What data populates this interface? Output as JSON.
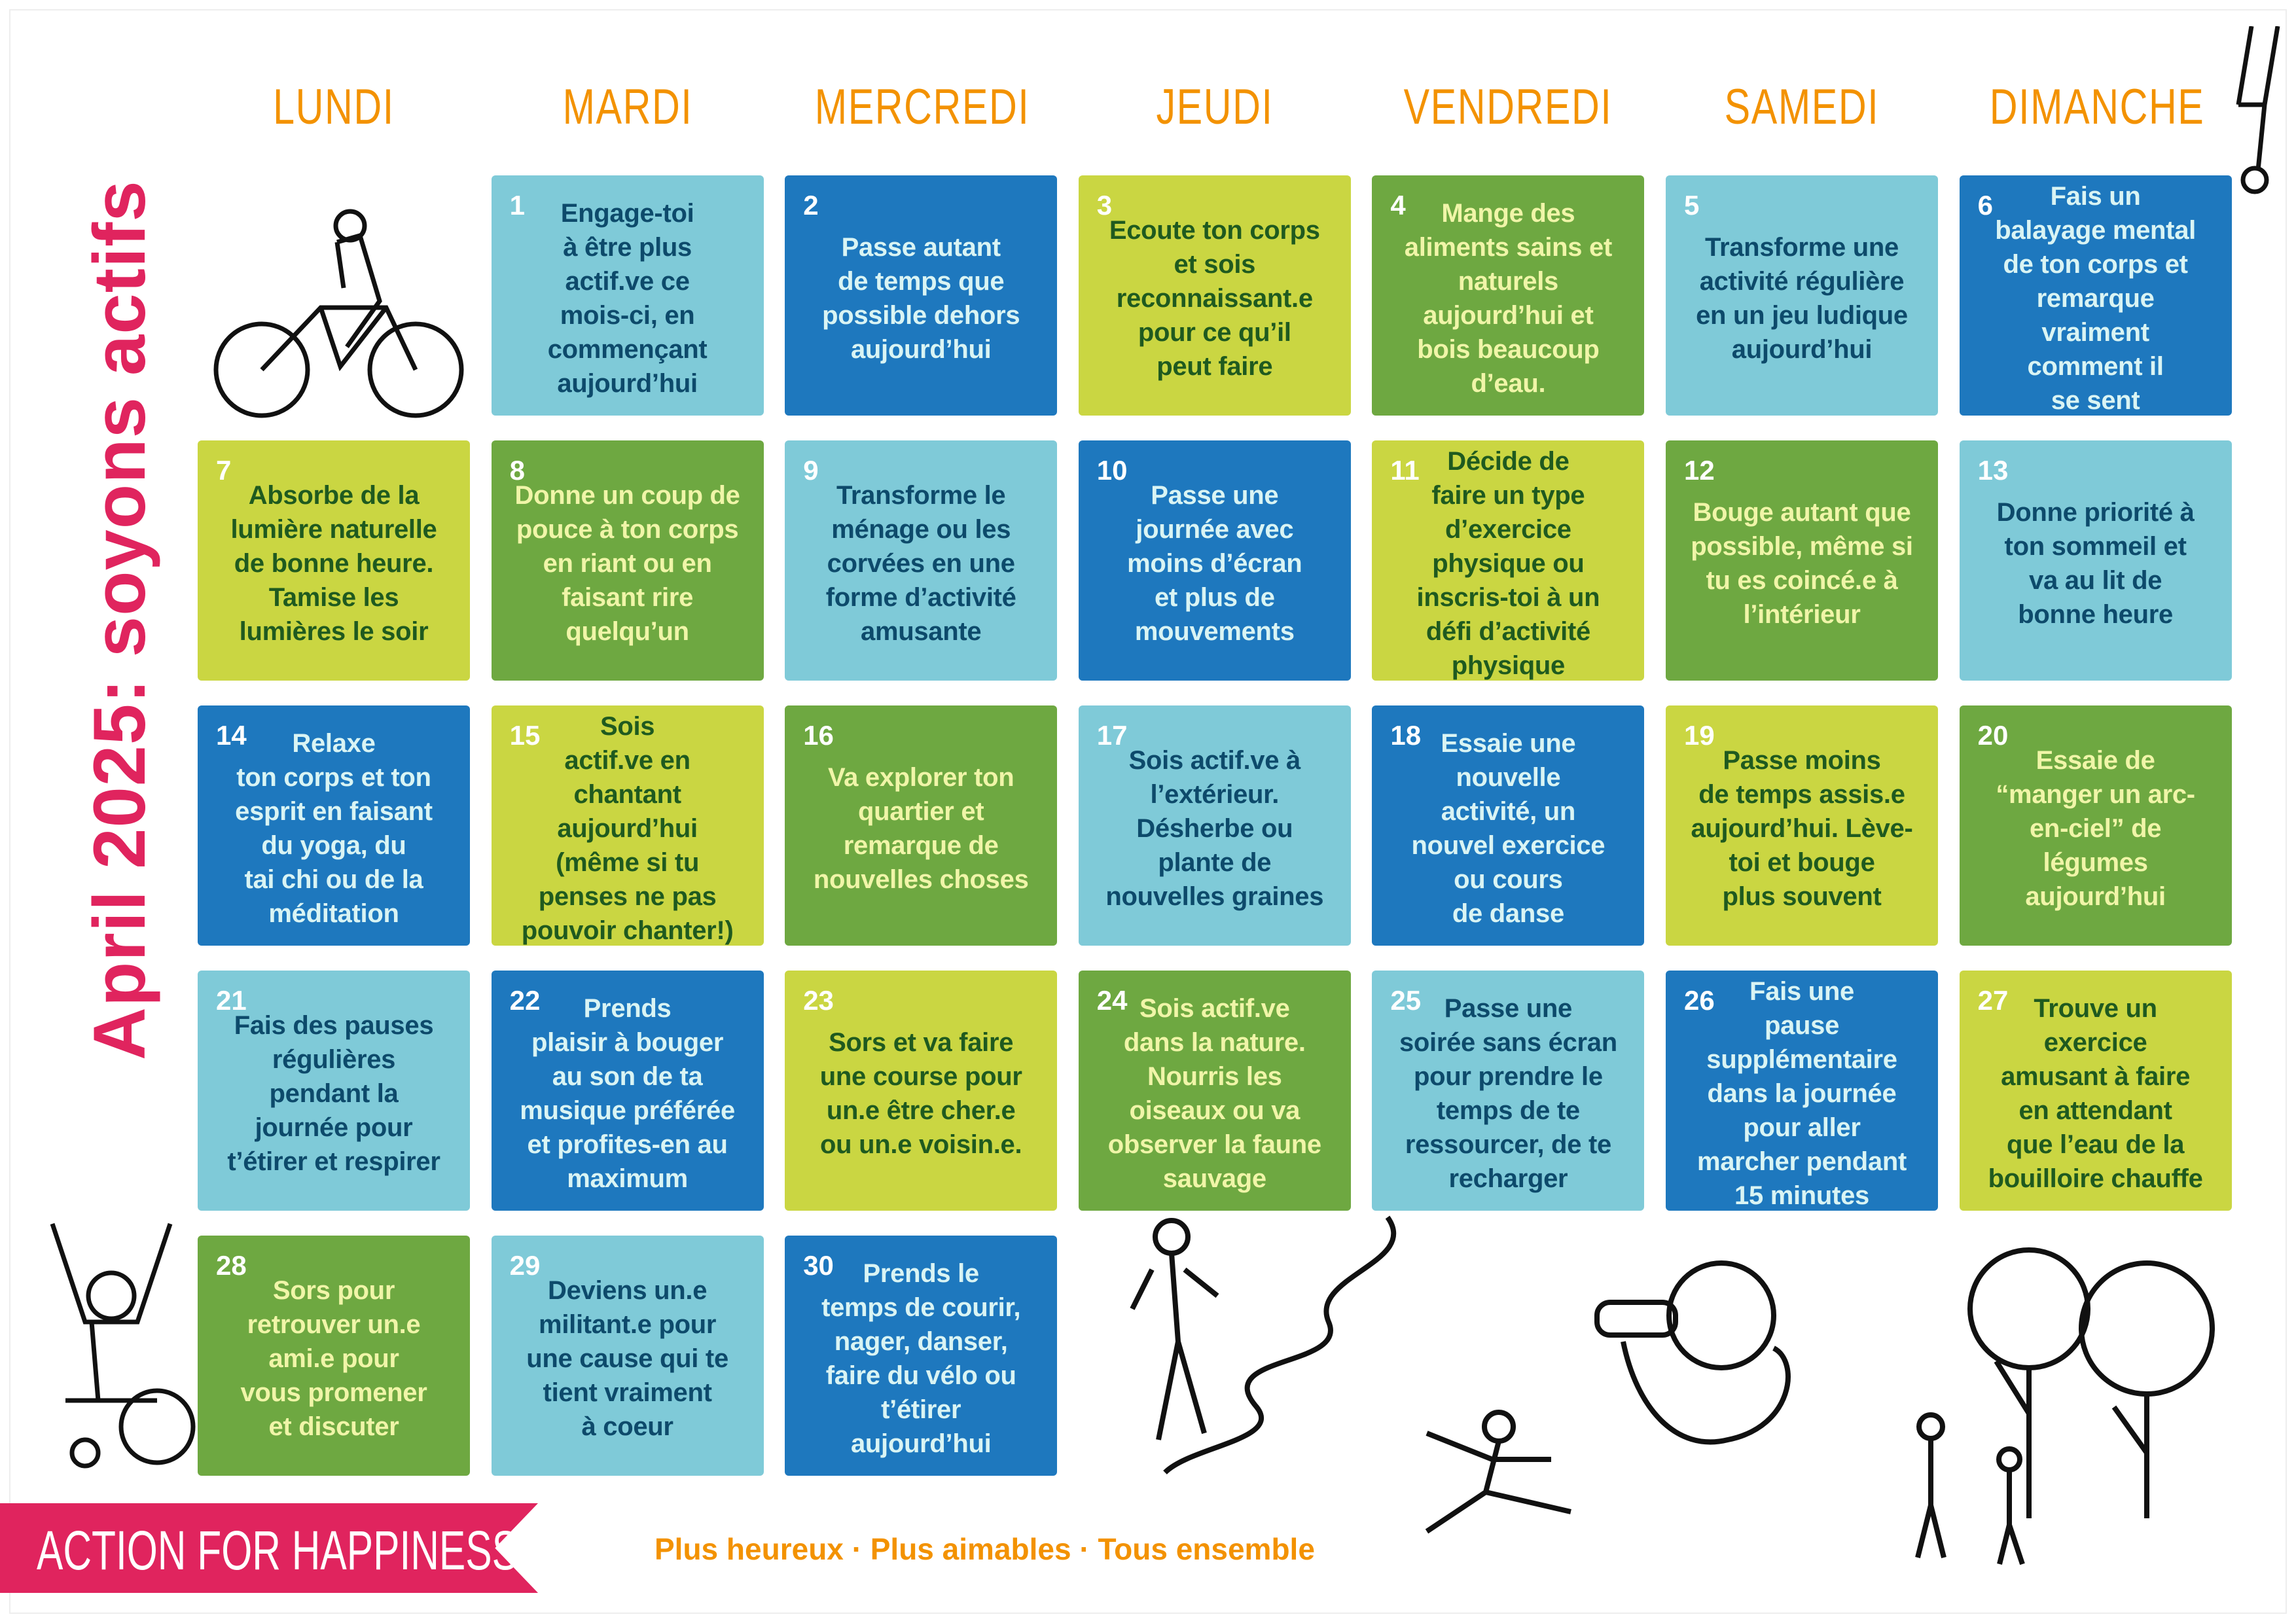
{
  "title": "April 2025: soyons actifs",
  "days": [
    "LUNDI",
    "MARDI",
    "MERCREDI",
    "JEUDI",
    "VENDREDI",
    "SAMEDI",
    "DIMANCHE"
  ],
  "cells": [
    {
      "n": "1",
      "t": "Engage-toi\nà être plus\nactif.ve ce\nmois-ci, en\ncommençant\naujourd’hui",
      "c": "lb",
      "col": 1,
      "row": 0
    },
    {
      "n": "2",
      "t": "Passe autant\nde temps que\npossible dehors\naujourd’hui",
      "c": "b",
      "col": 2,
      "row": 0
    },
    {
      "n": "3",
      "t": "Ecoute ton corps\net sois\nreconnaissant.e\npour ce qu’il\npeut faire",
      "c": "li",
      "col": 3,
      "row": 0
    },
    {
      "n": "4",
      "t": "Mange des\naliments sains et\nnaturels\naujourd’hui et\nbois beaucoup\nd’eau.",
      "c": "g",
      "col": 4,
      "row": 0
    },
    {
      "n": "5",
      "t": "Transforme une\nactivité régulière\nen un jeu ludique\naujourd’hui",
      "c": "lb",
      "col": 5,
      "row": 0
    },
    {
      "n": "6",
      "t": "Fais un\nbalayage mental\nde ton corps et\nremarque\nvraiment\ncomment il\nse sent",
      "c": "b",
      "col": 6,
      "row": 0
    },
    {
      "n": "7",
      "t": "Absorbe de la\nlumière naturelle\nde bonne heure.\nTamise les\nlumières le soir",
      "c": "li",
      "col": 0,
      "row": 1
    },
    {
      "n": "8",
      "t": "Donne un coup de\npouce à ton corps\nen riant ou en\nfaisant rire\nquelqu’un",
      "c": "g",
      "col": 1,
      "row": 1
    },
    {
      "n": "9",
      "t": "Transforme le\nménage ou les\ncorvées en une\nforme d’activité\namusante",
      "c": "lb",
      "col": 2,
      "row": 1
    },
    {
      "n": "10",
      "t": "Passe une\njournée avec\nmoins d’écran\net plus de\nmouvements",
      "c": "b",
      "col": 3,
      "row": 1
    },
    {
      "n": "11",
      "t": "Décide de\nfaire un type\nd’exercice\nphysique ou\ninscris-toi à un\ndéfi d’activité\nphysique",
      "c": "li",
      "col": 4,
      "row": 1
    },
    {
      "n": "12",
      "t": "Bouge autant que\npossible, même si\ntu es coincé.e à\nl’intérieur",
      "c": "g",
      "col": 5,
      "row": 1
    },
    {
      "n": "13",
      "t": "Donne priorité à\nton sommeil et\nva au lit de\nbonne heure",
      "c": "lb",
      "col": 6,
      "row": 1
    },
    {
      "n": "14",
      "t": "Relaxe\nton corps et ton\nesprit en faisant\ndu yoga, du\ntai chi ou de la\nméditation",
      "c": "b",
      "col": 0,
      "row": 2
    },
    {
      "n": "15",
      "t": "Sois\nactif.ve en\nchantant\naujourd’hui\n(même si tu\npenses ne pas\npouvoir chanter!)",
      "c": "li",
      "col": 1,
      "row": 2
    },
    {
      "n": "16",
      "t": "Va explorer ton\nquartier et\nremarque de\nnouvelles choses",
      "c": "g",
      "col": 2,
      "row": 2
    },
    {
      "n": "17",
      "t": "Sois actif.ve à\nl’extérieur.\nDésherbe ou\nplante de\nnouvelles graines",
      "c": "lb",
      "col": 3,
      "row": 2
    },
    {
      "n": "18",
      "t": "Essaie une\nnouvelle\nactivité, un\nnouvel exercice\nou cours\nde danse",
      "c": "b",
      "col": 4,
      "row": 2
    },
    {
      "n": "19",
      "t": "Passe moins\nde temps assis.e\naujourd’hui. Lève-\ntoi et bouge\nplus souvent",
      "c": "li",
      "col": 5,
      "row": 2
    },
    {
      "n": "20",
      "t": "Essaie de\n“manger un arc-\nen-ciel” de\nlégumes\naujourd’hui",
      "c": "g",
      "col": 6,
      "row": 2
    },
    {
      "n": "21",
      "t": "Fais des pauses\nrégulières\npendant la\njournée pour\nt’étirer et respirer",
      "c": "lb",
      "col": 0,
      "row": 3
    },
    {
      "n": "22",
      "t": "Prends\nplaisir à bouger\nau son de ta\nmusique préférée\net profites-en au\nmaximum",
      "c": "b",
      "col": 1,
      "row": 3
    },
    {
      "n": "23",
      "t": "Sors et va faire\nune course pour\nun.e être cher.e\nou un.e voisin.e.",
      "c": "li",
      "col": 2,
      "row": 3
    },
    {
      "n": "24",
      "t": "Sois actif.ve\ndans la nature.\nNourris les\noiseaux ou va\nobserver la faune\nsauvage",
      "c": "g",
      "col": 3,
      "row": 3
    },
    {
      "n": "25",
      "t": "Passe une\nsoirée sans écran\npour prendre le\ntemps de te\nressourcer, de te\nrecharger",
      "c": "lb",
      "col": 4,
      "row": 3
    },
    {
      "n": "26",
      "t": "Fais une\npause\nsupplémentaire\ndans la journée\npour aller\nmarcher pendant\n15 minutes",
      "c": "b",
      "col": 5,
      "row": 3
    },
    {
      "n": "27",
      "t": "Trouve un\nexercice\namusant à faire\nen attendant\nque l’eau de la\nbouilloire chauffe",
      "c": "li",
      "col": 6,
      "row": 3
    },
    {
      "n": "28",
      "t": "Sors pour\nretrouver un.e\nami.e pour\nvous promener\net discuter",
      "c": "g",
      "col": 0,
      "row": 4
    },
    {
      "n": "29",
      "t": "Deviens un.e\nmilitant.e pour\nune cause qui te\ntient vraiment\nà coeur",
      "c": "lb",
      "col": 1,
      "row": 4
    },
    {
      "n": "30",
      "t": "Prends le\ntemps de courir,\nnager, danser,\nfaire du vélo ou\nt’étirer\naujourd’hui",
      "c": "b",
      "col": 2,
      "row": 4
    }
  ],
  "brand": "ACTION FOR HAPPINESS",
  "tagline": "Plus heureux · Plus aimables · Tous ensemble",
  "colors": {
    "light_blue": "#7fcad8",
    "blue": "#1e78be",
    "lime": "#cad642",
    "green": "#6ea841",
    "orange": "#f39200",
    "pink": "#e0245e"
  }
}
